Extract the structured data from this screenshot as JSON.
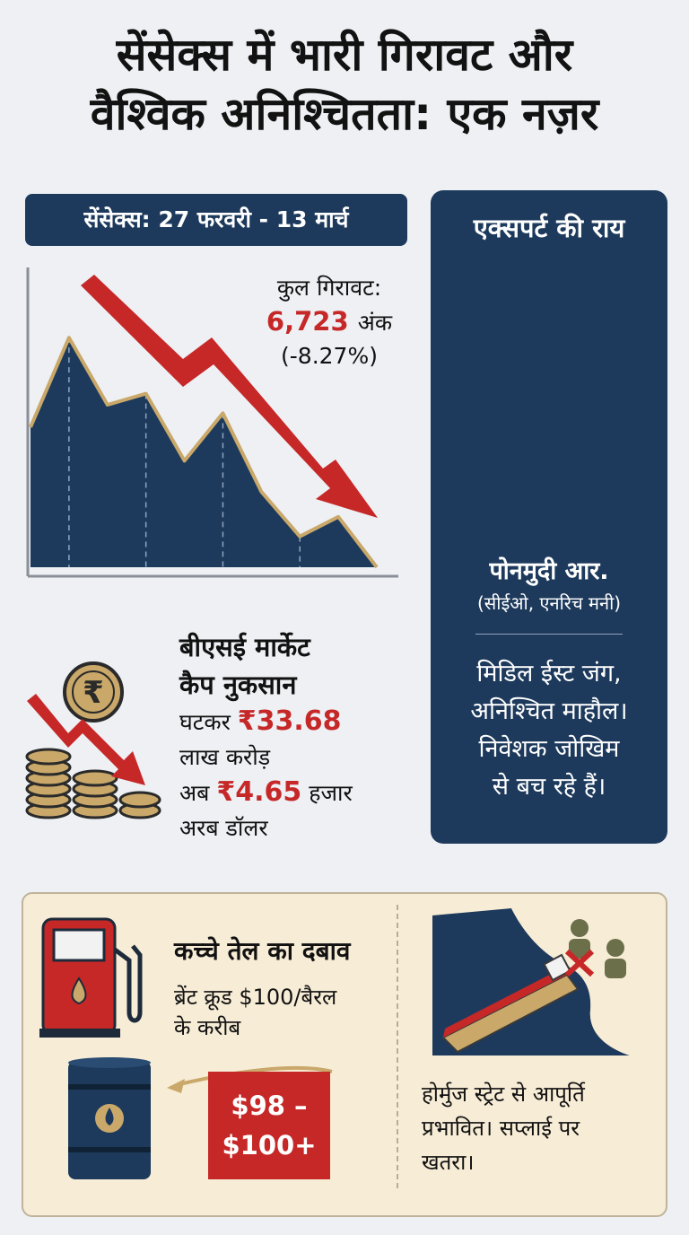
{
  "title": {
    "line1": "सेंसेक्स में भारी गिरावट और",
    "line2": "वैश्विक अनिश्चितता: एक नज़र"
  },
  "sensex_chart": {
    "header": "सेंसेक्स: 27 फरवरी - 13 मार्च",
    "drop_label": "कुल गिरावट:",
    "drop_value": "6,723",
    "drop_unit": "अंक",
    "drop_pct": "(-8.27%)",
    "trend_index": [
      0.5,
      0.82,
      0.58,
      0.62,
      0.38,
      0.55,
      0.27,
      0.11,
      0.18,
      0.0
    ]
  },
  "market_cap": {
    "heading_line1": "बीएसई मार्केट",
    "heading_line2": "कैप नुकसान",
    "line1_prefix": "घटकर",
    "line1_value": "₹33.68",
    "line2": "लाख करोड़",
    "line3_prefix": "अब",
    "line3_value": "₹4.65",
    "line3_suffix": "हजार",
    "line4": "अरब डॉलर"
  },
  "expert": {
    "heading": "एक्सपर्ट की राय",
    "name": "पोनमुदी आर.",
    "role": "(सीईओ, एनरिच मनी)",
    "quote_line1": "मिडिल ईस्ट जंग,",
    "quote_line2": "अनिश्चित माहौल।",
    "quote_line3": "निवेशक जोखिम",
    "quote_line4": "से बच रहे हैं।"
  },
  "oil": {
    "heading": "कच्चे तेल का दबाव",
    "text_line1": "ब्रेंट क्रूड $100/बैरल",
    "text_line2": "के करीब",
    "price_line1": "$98 –",
    "price_line2": "$100+"
  },
  "strait": {
    "text_line1": "होर्मुज स्ट्रेट से आपूर्ति",
    "text_line2": "प्रभावित। सप्लाई पर",
    "text_line3": "खतरा।"
  },
  "colors": {
    "navy": "#1d3a5c",
    "red": "#c62828",
    "gold": "#c9a86a",
    "panel": "#f7ecd6"
  },
  "icons": [
    "trend-down-arrow-icon",
    "rupee-coin-icon",
    "coin-stack-icon",
    "fuel-pump-icon",
    "oil-barrel-icon",
    "tanker-ship-icon",
    "soldier-icon",
    "blocked-x-icon"
  ]
}
